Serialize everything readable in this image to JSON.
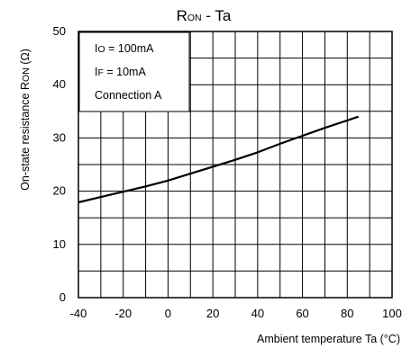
{
  "chart_data": {
    "type": "line",
    "title_main": "R",
    "title_sub": "ON",
    "title_rest": " - Ta",
    "ylabel_main": "On-state resistance R",
    "ylabel_sub": "ON",
    "ylabel_rest": " (Ω)",
    "xlabel": "Ambient temperature Ta (°C)",
    "xlim": [
      -40,
      100
    ],
    "ylim": [
      0,
      50
    ],
    "xticks": [
      -40,
      -20,
      0,
      20,
      40,
      60,
      80,
      100
    ],
    "yticks": [
      0,
      10,
      20,
      30,
      40,
      50
    ],
    "grid": true,
    "conditions": [
      {
        "main": "I",
        "sub": "O",
        "rest": " = 100mA"
      },
      {
        "main": "I",
        "sub": "F",
        "rest": " = 10mA"
      },
      {
        "main": "",
        "sub": "",
        "rest": "Connection A"
      }
    ],
    "series": [
      {
        "x": [
          -40,
          -30,
          -20,
          -10,
          0,
          10,
          20,
          30,
          40,
          50,
          60,
          70,
          80,
          85
        ],
        "y": [
          17.9,
          18.9,
          19.9,
          20.9,
          22.0,
          23.3,
          24.6,
          25.9,
          27.3,
          28.9,
          30.4,
          31.9,
          33.3,
          34.0
        ]
      }
    ]
  }
}
